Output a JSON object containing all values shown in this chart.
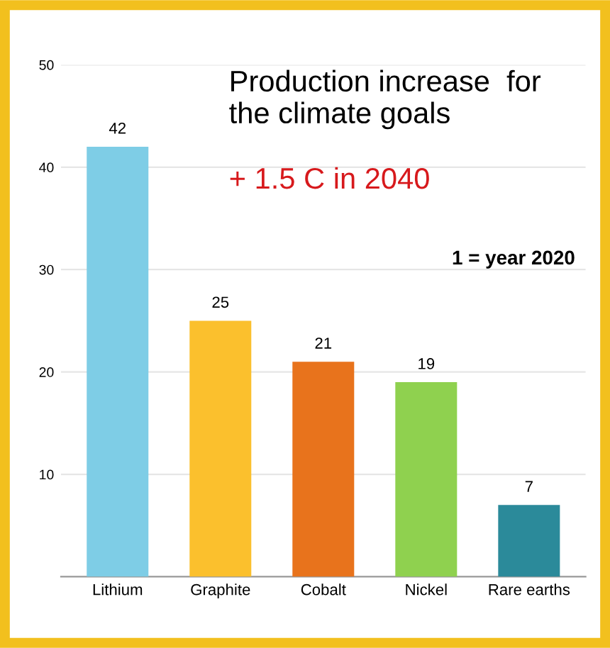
{
  "chart_data": {
    "type": "bar",
    "title": "Production increase  for\nthe climate goals",
    "subtitle": "+ 1.5 C in 2040",
    "annotations": [
      "1 = year 2020"
    ],
    "categories": [
      "Lithium",
      "Graphite",
      "Cobalt",
      "Nickel",
      "Rare earths"
    ],
    "values": [
      42,
      25,
      21,
      19,
      7
    ],
    "colors": [
      "#7ecde6",
      "#fbc02d",
      "#e8731c",
      "#8fd14f",
      "#2b8a9a"
    ],
    "ylim": [
      0,
      50
    ],
    "yticks": [
      10,
      20,
      30,
      40,
      50
    ],
    "grid": "y",
    "data_labels": true
  }
}
